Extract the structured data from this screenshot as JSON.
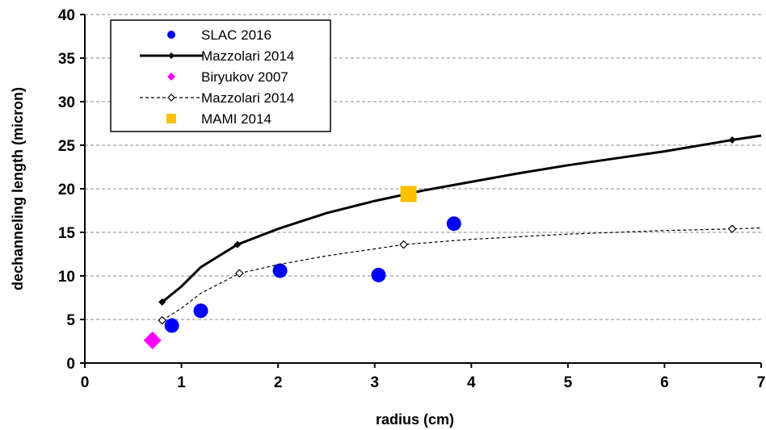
{
  "chart_data": {
    "type": "scatter",
    "title": "",
    "xlabel": "radius (cm)",
    "ylabel": "dechanneling length (micron)",
    "xlim": [
      0,
      7
    ],
    "ylim": [
      0,
      40
    ],
    "xticks": [
      "0",
      "1",
      "2",
      "3",
      "4",
      "5",
      "6",
      "7"
    ],
    "yticks": [
      "0",
      "5",
      "10",
      "15",
      "20",
      "25",
      "30",
      "35",
      "40"
    ],
    "grid": "horizontal dashed",
    "legend_position": "top-left",
    "series": [
      {
        "name": "SLAC 2016",
        "style": "marker",
        "marker": "circle",
        "color": "#0000ff",
        "points": [
          {
            "x": 0.9,
            "y": 4.3
          },
          {
            "x": 1.2,
            "y": 6.0
          },
          {
            "x": 2.02,
            "y": 10.6
          },
          {
            "x": 3.04,
            "y": 10.1
          },
          {
            "x": 3.82,
            "y": 16.0
          }
        ]
      },
      {
        "name": "Mazzolari 2014",
        "style": "solid-line",
        "marker": "small-dot",
        "color": "#000000",
        "points": [
          {
            "x": 0.8,
            "y": 7.0
          },
          {
            "x": 1.58,
            "y": 13.6
          },
          {
            "x": 6.7,
            "y": 25.6
          }
        ],
        "curve": [
          {
            "x": 0.8,
            "y": 7.0
          },
          {
            "x": 1.0,
            "y": 8.8
          },
          {
            "x": 1.2,
            "y": 11.0
          },
          {
            "x": 1.58,
            "y": 13.6
          },
          {
            "x": 2.0,
            "y": 15.4
          },
          {
            "x": 2.5,
            "y": 17.2
          },
          {
            "x": 3.0,
            "y": 18.6
          },
          {
            "x": 3.5,
            "y": 19.8
          },
          {
            "x": 4.0,
            "y": 20.8
          },
          {
            "x": 4.5,
            "y": 21.8
          },
          {
            "x": 5.0,
            "y": 22.7
          },
          {
            "x": 5.5,
            "y": 23.5
          },
          {
            "x": 6.0,
            "y": 24.3
          },
          {
            "x": 6.7,
            "y": 25.6
          },
          {
            "x": 7.0,
            "y": 26.1
          }
        ]
      },
      {
        "name": "Biryukov 2007",
        "style": "marker",
        "marker": "diamond",
        "color": "#ff00ff",
        "points": [
          {
            "x": 0.7,
            "y": 2.6
          }
        ]
      },
      {
        "name": "Mazzolari 2014",
        "style": "dashed-line",
        "marker": "open-diamond",
        "color": "#000000",
        "points": [
          {
            "x": 0.8,
            "y": 4.9
          },
          {
            "x": 1.6,
            "y": 10.3
          },
          {
            "x": 3.3,
            "y": 13.6
          },
          {
            "x": 6.7,
            "y": 15.4
          }
        ],
        "curve": [
          {
            "x": 0.8,
            "y": 4.9
          },
          {
            "x": 1.0,
            "y": 6.3
          },
          {
            "x": 1.2,
            "y": 8.0
          },
          {
            "x": 1.6,
            "y": 10.3
          },
          {
            "x": 2.0,
            "y": 11.3
          },
          {
            "x": 2.5,
            "y": 12.3
          },
          {
            "x": 3.0,
            "y": 13.1
          },
          {
            "x": 3.3,
            "y": 13.6
          },
          {
            "x": 4.0,
            "y": 14.2
          },
          {
            "x": 4.5,
            "y": 14.5
          },
          {
            "x": 5.0,
            "y": 14.8
          },
          {
            "x": 5.5,
            "y": 15.0
          },
          {
            "x": 6.0,
            "y": 15.2
          },
          {
            "x": 6.7,
            "y": 15.4
          },
          {
            "x": 7.0,
            "y": 15.5
          }
        ]
      },
      {
        "name": "MAMI 2014",
        "style": "marker",
        "marker": "square",
        "color": "#ffc000",
        "points": [
          {
            "x": 3.35,
            "y": 19.4
          }
        ]
      }
    ]
  }
}
